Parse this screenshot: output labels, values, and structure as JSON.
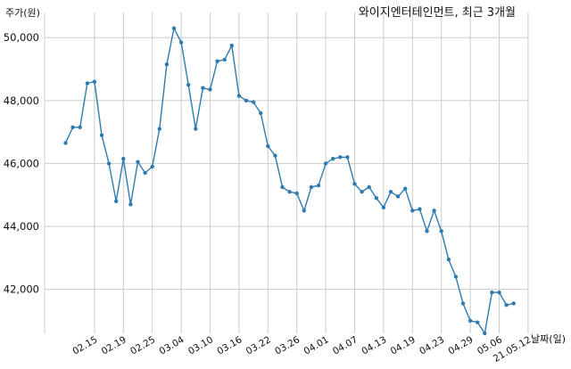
{
  "chart_data": {
    "type": "line",
    "title": "와이지엔터테인먼트, 최근 3개월",
    "ylabel": "주가(원)",
    "xlabel": "날짜(일)",
    "ylim": [
      40600,
      50800
    ],
    "yticks": [
      42000,
      44000,
      46000,
      48000,
      50000
    ],
    "ytick_labels": [
      "42,000",
      "44,000",
      "46,000",
      "48,000",
      "50,000"
    ],
    "xtick_labels": [
      "02.15",
      "02.19",
      "02.25",
      "03.04",
      "03.10",
      "03.16",
      "03.22",
      "03.26",
      "04.01",
      "04.07",
      "04.13",
      "04.19",
      "04.23",
      "04.29",
      "05.06",
      "21.05.12"
    ],
    "xtick_index": [
      4,
      8,
      12,
      16,
      20,
      24,
      28,
      32,
      36,
      40,
      44,
      48,
      52,
      56,
      60,
      64
    ],
    "grid": true,
    "color": "#2e7bb0",
    "series": [
      {
        "values": [
          46650,
          47150,
          47150,
          48550,
          48600,
          46900,
          46000,
          44800,
          46150,
          44700,
          46050,
          45700,
          45900,
          47100,
          49150,
          50300,
          49850,
          48500,
          47100,
          48400,
          48350,
          49250,
          49300,
          49750,
          48150,
          48000,
          47950,
          47600,
          46550,
          46250,
          45250,
          45100,
          45050,
          44500,
          45250,
          45300,
          46000,
          46150,
          46200,
          46200,
          45350,
          45100,
          45250,
          44900,
          44600,
          45100,
          44950,
          45200,
          44500,
          44550,
          43850,
          44500,
          43850,
          42950,
          42400,
          41550,
          41000,
          40950,
          40600,
          41900,
          41900,
          41500,
          41550
        ]
      }
    ]
  }
}
